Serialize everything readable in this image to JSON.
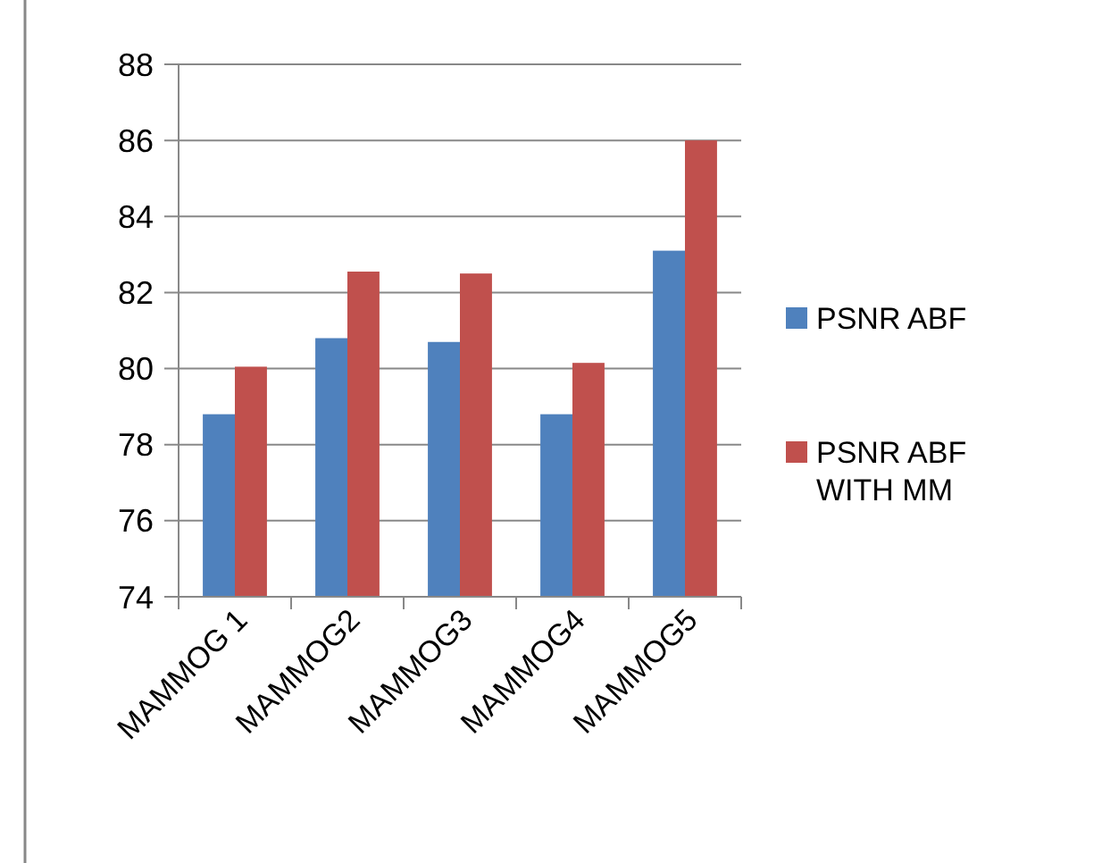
{
  "chart_data": {
    "type": "bar",
    "categories": [
      "MAMMOG 1",
      "MAMMOG2",
      "MAMMOG3",
      "MAMMOG4",
      "MAMMOG5"
    ],
    "series": [
      {
        "name": "PSNR ABF",
        "color": "#4f81bd",
        "values": [
          78.8,
          80.8,
          80.7,
          78.8,
          83.1
        ]
      },
      {
        "name": "PSNR ABF WITH MM",
        "color": "#c0504d",
        "values": [
          80.05,
          82.55,
          82.5,
          80.15,
          86.0
        ]
      }
    ],
    "ylim": [
      74,
      88
    ],
    "yticks": [
      74,
      76,
      78,
      80,
      82,
      84,
      86,
      88
    ],
    "grid": "y",
    "legend": "right"
  }
}
